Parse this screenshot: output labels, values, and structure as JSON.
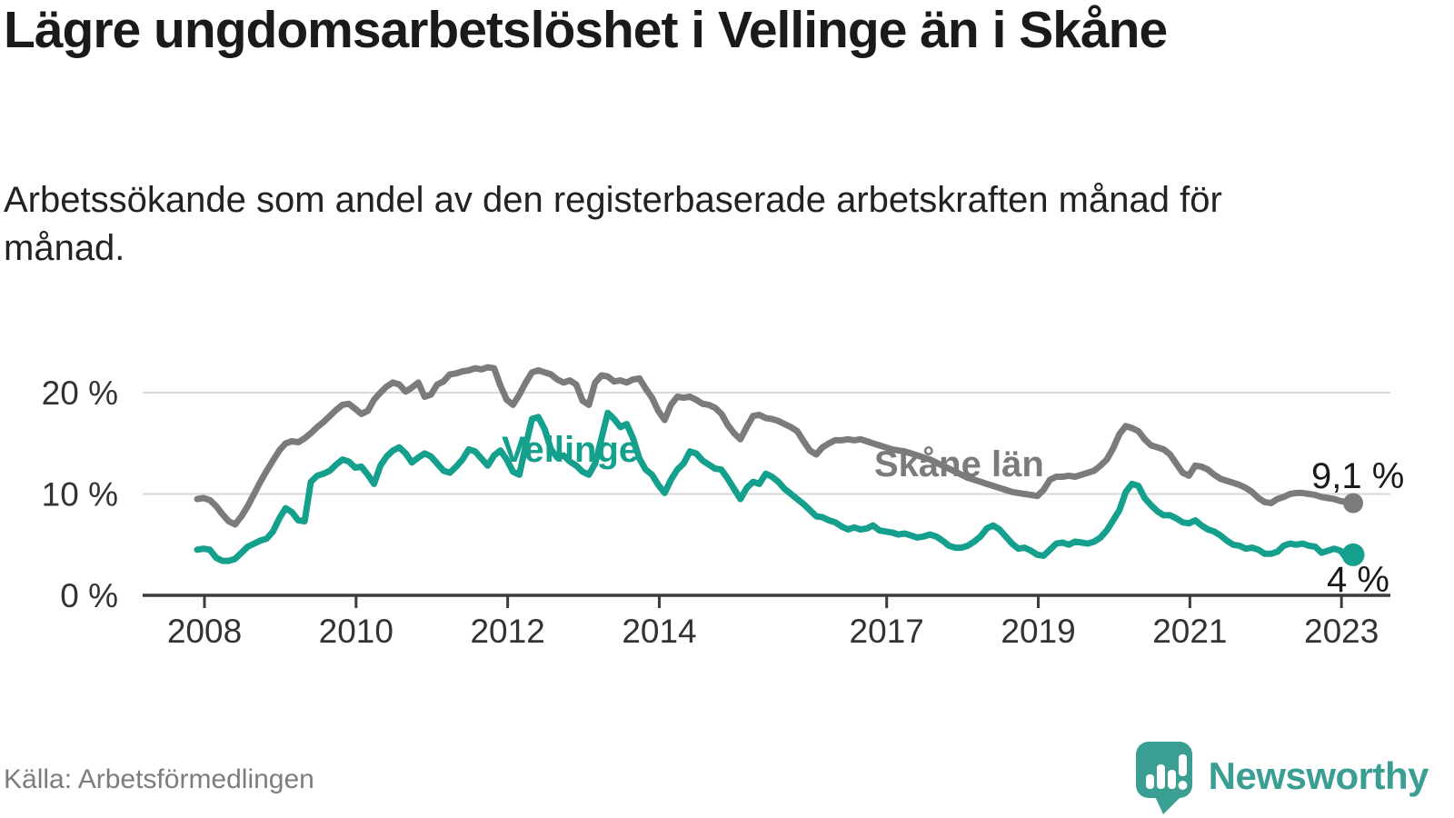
{
  "header": {
    "title": "Lägre ungdomsarbetslöshet i Vellinge än i Skåne",
    "subtitle": "Arbetssökande som andel av den registerbaserade arbetskraften månad för månad."
  },
  "footer": {
    "source": "Källa: Arbetsförmedlingen",
    "brand": "Newsworthy",
    "brand_icon": "newsworthy-speech-bubble-bar-chart-icon"
  },
  "colors": {
    "vellinge_teal": "#14a08c",
    "skane_gray": "#7b7b7e",
    "axis": "#3b3b3b",
    "gridline": "#d9d9d9",
    "tick_text": "#333333",
    "title_text": "#1a1a1a",
    "end_label_text": "#1a1a1a",
    "source_text": "#7d7d7d",
    "brand_teal": "#3a9e93"
  },
  "chart_data": {
    "type": "line",
    "title": "Lägre ungdomsarbetslöshet i Vellinge än i Skåne",
    "subtitle": "Arbetssökande som andel av den registerbaserade arbetskraften månad för månad.",
    "xlabel": "",
    "ylabel": "",
    "grid": "horizontal-only",
    "legend_position": "inline-series-labels",
    "x_unit": "month",
    "x_start": "2008-01",
    "x_end": "2023-04",
    "x_tick_years": [
      2008,
      2010,
      2012,
      2014,
      2017,
      2019,
      2021,
      2023
    ],
    "x_tick_labels": [
      "2008",
      "2010",
      "2012",
      "2014",
      "2017",
      "2019",
      "2021",
      "2023"
    ],
    "y_tick_values": [
      0,
      10,
      20
    ],
    "y_tick_labels": [
      "0 %",
      "10 %",
      "20 %"
    ],
    "ylim": [
      0,
      23.5
    ],
    "series": [
      {
        "name": "Skåne län",
        "color": "#7b7b7e",
        "end_label": "9,1 %",
        "end_value": 9.1,
        "values": [
          9.5,
          9.6,
          9.4,
          8.8,
          8.0,
          7.3,
          7.0,
          7.8,
          8.8,
          10.0,
          11.2,
          12.3,
          13.3,
          14.3,
          15.0,
          15.2,
          15.1,
          15.5,
          16.0,
          16.6,
          17.1,
          17.7,
          18.3,
          18.8,
          18.9,
          18.4,
          17.9,
          18.2,
          19.3,
          20.0,
          20.6,
          21.0,
          20.8,
          20.1,
          20.5,
          21.0,
          19.6,
          19.8,
          20.8,
          21.1,
          21.8,
          21.9,
          22.1,
          22.2,
          22.4,
          22.3,
          22.5,
          22.4,
          20.7,
          19.3,
          18.8,
          19.8,
          21.0,
          22.0,
          22.2,
          22.0,
          21.8,
          21.3,
          21.0,
          21.2,
          20.8,
          19.2,
          18.8,
          21.0,
          21.7,
          21.6,
          21.1,
          21.2,
          21.0,
          21.3,
          21.4,
          20.4,
          19.5,
          18.2,
          17.3,
          18.8,
          19.6,
          19.5,
          19.6,
          19.3,
          18.9,
          18.8,
          18.5,
          17.9,
          16.8,
          16.0,
          15.4,
          16.6,
          17.7,
          17.8,
          17.5,
          17.4,
          17.2,
          16.9,
          16.6,
          16.2,
          15.2,
          14.3,
          13.9,
          14.6,
          15.0,
          15.3,
          15.3,
          15.4,
          15.3,
          15.4,
          15.2,
          15.0,
          14.8,
          14.6,
          14.4,
          14.3,
          14.2,
          14.0,
          13.8,
          13.6,
          13.4,
          13.1,
          12.8,
          12.5,
          12.2,
          11.9,
          11.6,
          11.4,
          11.2,
          11.0,
          10.8,
          10.6,
          10.4,
          10.2,
          10.1,
          10.0,
          9.9,
          9.8,
          10.4,
          11.4,
          11.7,
          11.7,
          11.8,
          11.7,
          11.9,
          12.1,
          12.3,
          12.8,
          13.4,
          14.5,
          15.9,
          16.7,
          16.5,
          16.2,
          15.4,
          14.8,
          14.6,
          14.4,
          13.9,
          13.0,
          12.1,
          11.8,
          12.8,
          12.7,
          12.4,
          11.9,
          11.5,
          11.3,
          11.1,
          10.9,
          10.6,
          10.2,
          9.6,
          9.2,
          9.1,
          9.5,
          9.7,
          10.0,
          10.1,
          10.1,
          10.0,
          9.9,
          9.7,
          9.6,
          9.5,
          9.3,
          9.2,
          9.1
        ]
      },
      {
        "name": "Vellinge",
        "color": "#14a08c",
        "end_label": "4 %",
        "end_value": 4.0,
        "values": [
          4.5,
          4.6,
          4.5,
          3.7,
          3.4,
          3.4,
          3.6,
          4.2,
          4.8,
          5.1,
          5.4,
          5.6,
          6.3,
          7.6,
          8.6,
          8.2,
          7.4,
          7.3,
          11.2,
          11.8,
          12.0,
          12.3,
          12.9,
          13.4,
          13.2,
          12.6,
          12.7,
          11.9,
          11.0,
          12.8,
          13.7,
          14.3,
          14.6,
          14.0,
          13.1,
          13.6,
          14.0,
          13.7,
          13.0,
          12.3,
          12.1,
          12.7,
          13.4,
          14.4,
          14.2,
          13.5,
          12.8,
          13.8,
          14.3,
          13.4,
          12.2,
          11.9,
          14.8,
          17.4,
          17.6,
          16.4,
          14.4,
          13.6,
          13.8,
          13.2,
          12.8,
          12.2,
          11.9,
          13.0,
          15.5,
          18.0,
          17.4,
          16.6,
          16.9,
          15.5,
          13.5,
          12.4,
          11.9,
          10.9,
          10.1,
          11.4,
          12.4,
          13.0,
          14.2,
          14.0,
          13.3,
          12.9,
          12.5,
          12.4,
          11.5,
          10.5,
          9.5,
          10.6,
          11.2,
          11.0,
          12.0,
          11.7,
          11.2,
          10.5,
          10.0,
          9.5,
          9.0,
          8.4,
          7.8,
          7.7,
          7.4,
          7.2,
          6.8,
          6.5,
          6.7,
          6.5,
          6.6,
          6.9,
          6.4,
          6.3,
          6.2,
          6.0,
          6.1,
          5.9,
          5.7,
          5.8,
          6.0,
          5.8,
          5.4,
          4.9,
          4.7,
          4.7,
          4.9,
          5.3,
          5.8,
          6.6,
          6.9,
          6.5,
          5.8,
          5.1,
          4.6,
          4.7,
          4.4,
          4.0,
          3.9,
          4.5,
          5.1,
          5.2,
          5.0,
          5.3,
          5.2,
          5.1,
          5.3,
          5.7,
          6.4,
          7.4,
          8.4,
          10.2,
          11.0,
          10.8,
          9.6,
          8.9,
          8.3,
          7.9,
          7.9,
          7.6,
          7.2,
          7.1,
          7.4,
          6.9,
          6.5,
          6.3,
          5.9,
          5.4,
          5.0,
          4.9,
          4.6,
          4.7,
          4.5,
          4.1,
          4.1,
          4.3,
          4.9,
          5.1,
          5.0,
          5.1,
          4.9,
          4.8,
          4.2,
          4.4,
          4.6,
          4.4,
          3.6,
          4.0
        ]
      }
    ]
  }
}
